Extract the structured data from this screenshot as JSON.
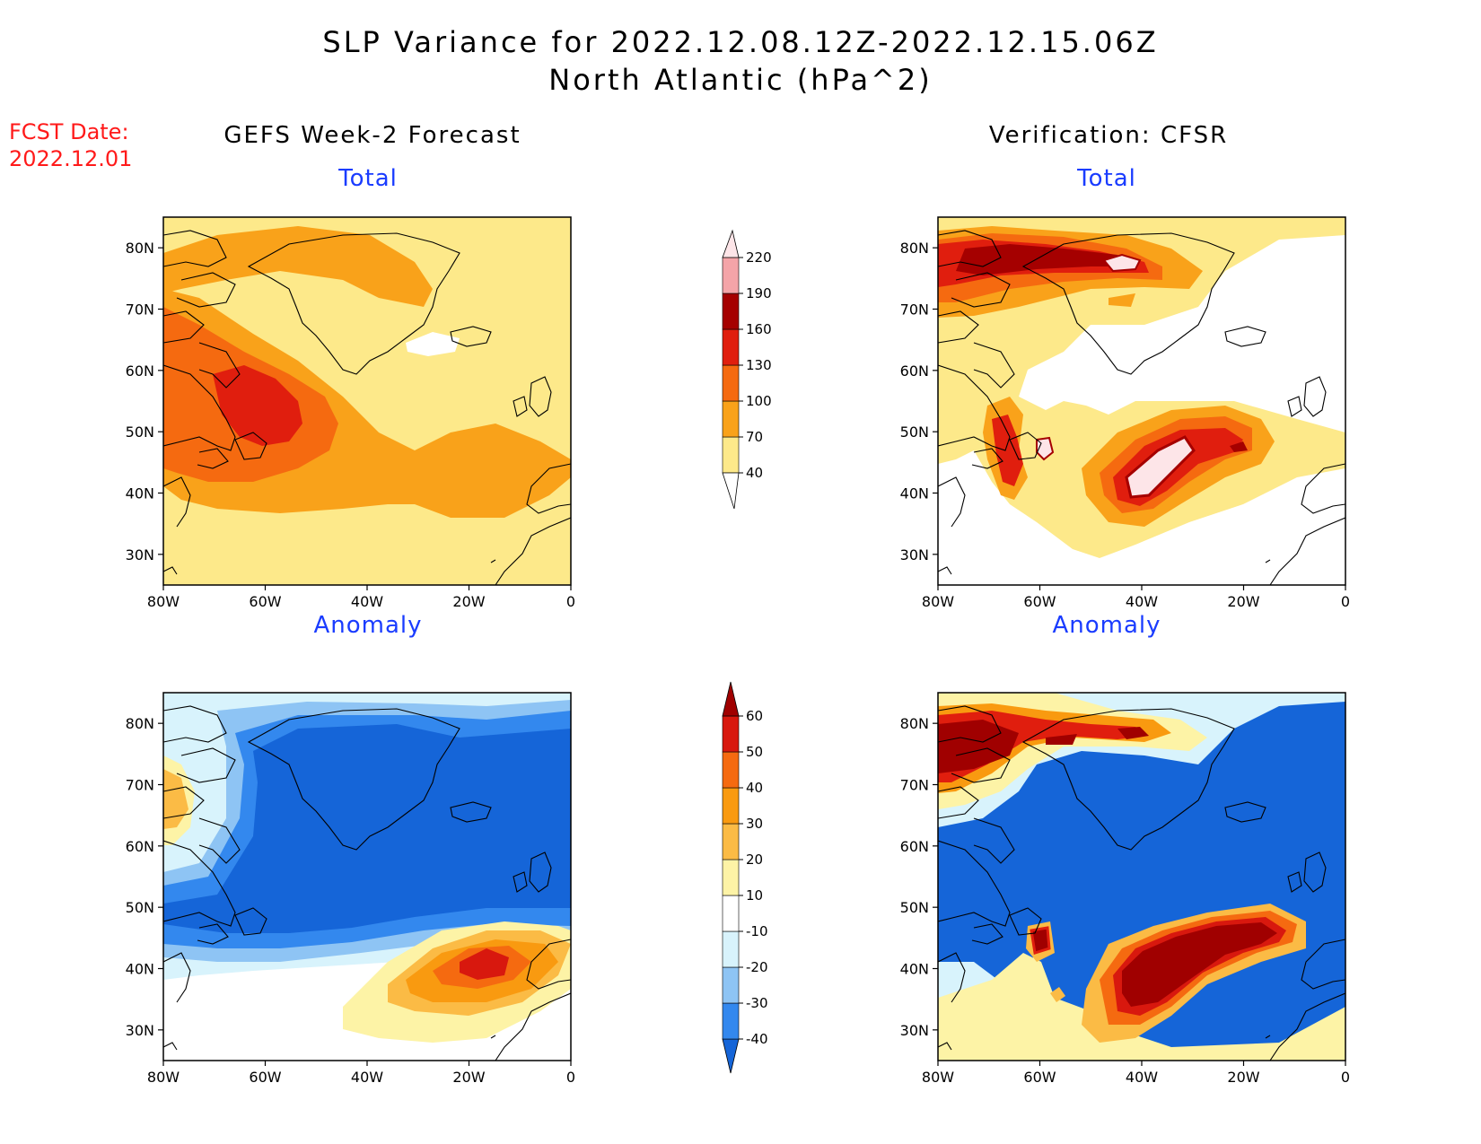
{
  "title_line1": "SLP Variance for 2022.12.08.12Z-2022.12.15.06Z",
  "title_line2": "North Atlantic (hPa^2)",
  "fcst_label": "FCST Date:",
  "fcst_date": "2022.12.01",
  "left_header": "GEFS Week-2 Forecast",
  "right_header": "Verification: CFSR",
  "panels": {
    "total_label": "Total",
    "anomaly_label": "Anomaly"
  },
  "map_axes": {
    "lat_labels": [
      "80N",
      "70N",
      "60N",
      "50N",
      "40N",
      "30N"
    ],
    "lon_labels": [
      "80W",
      "60W",
      "40W",
      "20W",
      "0"
    ]
  },
  "total_scale": {
    "labels": [
      "40",
      "70",
      "100",
      "130",
      "160",
      "190",
      "220"
    ],
    "colors": [
      "#fde98a",
      "#f9a21a",
      "#f56a10",
      "#e01e0e",
      "#a50000",
      "#f4a4a8",
      "#fde5e8"
    ]
  },
  "anomaly_scale": {
    "labels": [
      "-40",
      "-30",
      "-20",
      "-10",
      "10",
      "20",
      "30",
      "40",
      "50",
      "60"
    ],
    "colors": [
      "#1565d8",
      "#3388ee",
      "#8ec4f4",
      "#d8f3fc",
      "#ffffff",
      "#fdf3a6",
      "#fbbb45",
      "#f99a10",
      "#f56a10",
      "#d8180e",
      "#a00000"
    ]
  }
}
